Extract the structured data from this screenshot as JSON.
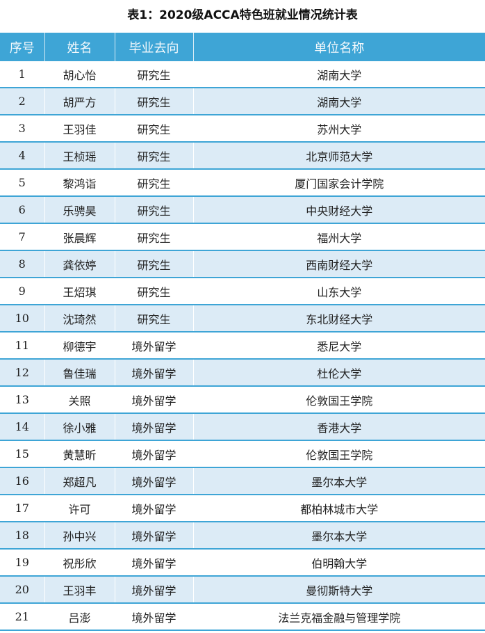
{
  "title": "表1：2020级ACCA特色班就业情况统计表",
  "headers": [
    "序号",
    "姓名",
    "毕业去向",
    "单位名称"
  ],
  "rows": [
    [
      "1",
      "胡心怡",
      "研究生",
      "湖南大学"
    ],
    [
      "2",
      "胡严方",
      "研究生",
      "湖南大学"
    ],
    [
      "3",
      "王羽佳",
      "研究生",
      "苏州大学"
    ],
    [
      "4",
      "王桢瑶",
      "研究生",
      "北京师范大学"
    ],
    [
      "5",
      "黎鸿诣",
      "研究生",
      "厦门国家会计学院"
    ],
    [
      "6",
      "乐骋昊",
      "研究生",
      "中央财经大学"
    ],
    [
      "7",
      "张晨辉",
      "研究生",
      "福州大学"
    ],
    [
      "8",
      "龚依婷",
      "研究生",
      "西南财经大学"
    ],
    [
      "9",
      "王炤琪",
      "研究生",
      "山东大学"
    ],
    [
      "10",
      "沈琦然",
      "研究生",
      "东北财经大学"
    ],
    [
      "11",
      "柳德宇",
      "境外留学",
      "悉尼大学"
    ],
    [
      "12",
      "鲁佳瑞",
      "境外留学",
      "杜伦大学"
    ],
    [
      "13",
      "关照",
      "境外留学",
      "伦敦国王学院"
    ],
    [
      "14",
      "徐小雅",
      "境外留学",
      "香港大学"
    ],
    [
      "15",
      "黄慧昕",
      "境外留学",
      "伦敦国王学院"
    ],
    [
      "16",
      "郑超凡",
      "境外留学",
      "墨尔本大学"
    ],
    [
      "17",
      "许可",
      "境外留学",
      "都柏林城市大学"
    ],
    [
      "18",
      "孙中兴",
      "境外留学",
      "墨尔本大学"
    ],
    [
      "19",
      "祝彤欣",
      "境外留学",
      "伯明翰大学"
    ],
    [
      "20",
      "王羽丰",
      "境外留学",
      "曼彻斯特大学"
    ],
    [
      "21",
      "吕澎",
      "境外留学",
      "法兰克福金融与管理学院"
    ]
  ],
  "colors": {
    "header": "#3ea5d6",
    "alt_row": "#dcebf6"
  }
}
